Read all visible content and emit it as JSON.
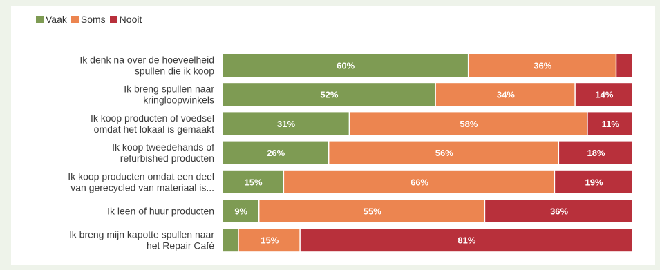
{
  "colors": {
    "vaak": "#7e9b53",
    "soms": "#ec8550",
    "nooit": "#b8303b",
    "page_bg": "#eef3ea"
  },
  "legend": [
    {
      "label": "Vaak",
      "color": "#7e9b53"
    },
    {
      "label": "Soms",
      "color": "#ec8550"
    },
    {
      "label": "Nooit",
      "color": "#b8303b"
    }
  ],
  "chart_data": {
    "type": "bar",
    "orientation": "horizontal",
    "stacked": true,
    "xlim": [
      0,
      100
    ],
    "legend_position": "top-left",
    "grid": false,
    "categories": [
      [
        "Ik denk na over de hoeveelheid",
        "spullen die ik koop"
      ],
      [
        "Ik breng spullen naar",
        "kringloopwinkels"
      ],
      [
        "Ik koop producten of voedsel",
        "omdat het lokaal is gemaakt"
      ],
      [
        "Ik koop tweedehands of",
        "refurbished producten"
      ],
      [
        "Ik koop producten omdat een deel",
        "van gerecycled van materiaal is..."
      ],
      [
        "Ik leen of huur producten"
      ],
      [
        "Ik breng mijn kapotte spullen naar",
        "het Repair Café"
      ]
    ],
    "series": [
      {
        "name": "Vaak",
        "values": [
          60,
          52,
          31,
          26,
          15,
          9,
          4
        ],
        "labels": [
          "60%",
          "52%",
          "31%",
          "26%",
          "15%",
          "9%",
          ""
        ]
      },
      {
        "name": "Soms",
        "values": [
          36,
          34,
          58,
          56,
          66,
          55,
          15
        ],
        "labels": [
          "36%",
          "34%",
          "58%",
          "56%",
          "66%",
          "55%",
          "15%"
        ]
      },
      {
        "name": "Nooit",
        "values": [
          4,
          14,
          11,
          18,
          19,
          36,
          81
        ],
        "labels": [
          "",
          "14%",
          "11%",
          "18%",
          "19%",
          "36%",
          "81%"
        ]
      }
    ]
  }
}
